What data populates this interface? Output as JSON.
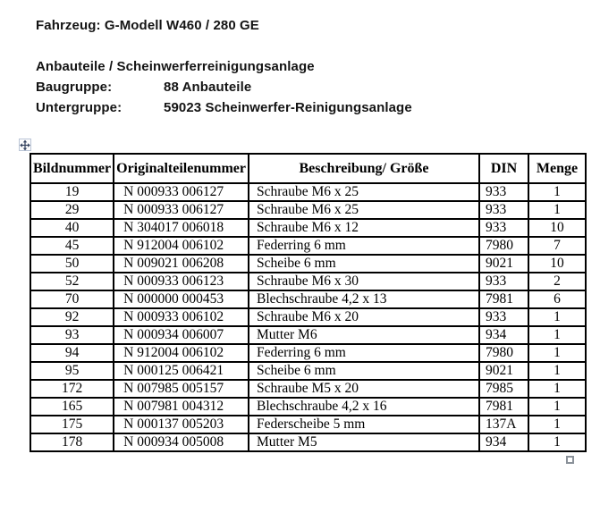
{
  "header": {
    "vehicle_line": "Fahrzeug: G-Modell W460 / 280 GE",
    "section_title": "Anbauteile / Scheinwerferreinigungsanlage",
    "baugruppe_label": "Baugruppe:",
    "baugruppe_value": "88 Anbauteile",
    "untergruppe_label": "Untergruppe:",
    "untergruppe_value": "59023 Scheinwerfer-Reinigungsanlage"
  },
  "table": {
    "columns": [
      "Bildnummer",
      "Originalteilenummer",
      "Beschreibung/ Größe",
      "DIN",
      "Menge"
    ],
    "column_keys": [
      "bildnummer",
      "teilenummer",
      "beschreibung",
      "din",
      "menge"
    ],
    "rows": [
      [
        "19",
        "N 000933 006127",
        "Schraube M6 x 25",
        "933",
        "1"
      ],
      [
        "29",
        "N 000933 006127",
        "Schraube M6 x 25",
        "933",
        "1"
      ],
      [
        "40",
        "N 304017 006018",
        "Schraube M6 x 12",
        "933",
        "10"
      ],
      [
        "45",
        "N 912004 006102",
        "Federring 6 mm",
        "7980",
        "7"
      ],
      [
        "50",
        "N 009021 006208",
        "Scheibe 6 mm",
        "9021",
        "10"
      ],
      [
        "52",
        "N 000933 006123",
        "Schraube M6 x 30",
        "933",
        "2"
      ],
      [
        "70",
        "N 000000 000453",
        "Blechschraube 4,2 x 13",
        "7981",
        "6"
      ],
      [
        "92",
        "N 000933 006102",
        "Schraube M6 x 20",
        "933",
        "1"
      ],
      [
        "93",
        "N 000934 006007",
        "Mutter M6",
        "934",
        "1"
      ],
      [
        "94",
        "N 912004 006102",
        "Federring 6 mm",
        "7980",
        "1"
      ],
      [
        "95",
        "N 000125 006421",
        "Scheibe 6 mm",
        "9021",
        "1"
      ],
      [
        "172",
        "N 007985 005157",
        "Schraube M5 x 20",
        "7985",
        "1"
      ],
      [
        "165",
        "N 007981 004312",
        "Blechschraube 4,2 x 16",
        "7981",
        "1"
      ],
      [
        "175",
        "N 000137 005203",
        "Federscheibe 5 mm",
        "137A",
        "1"
      ],
      [
        "178",
        "N 000934 005008",
        "Mutter M5",
        "934",
        "1"
      ]
    ]
  },
  "icons": {
    "table_move_handle": "move-icon",
    "table_resize_handle": "resize-square-icon"
  },
  "colors": {
    "text": "#141414",
    "table_border": "#000000",
    "move_icon": "#33415c",
    "resize_border": "#8a9199",
    "background": "#ffffff"
  }
}
